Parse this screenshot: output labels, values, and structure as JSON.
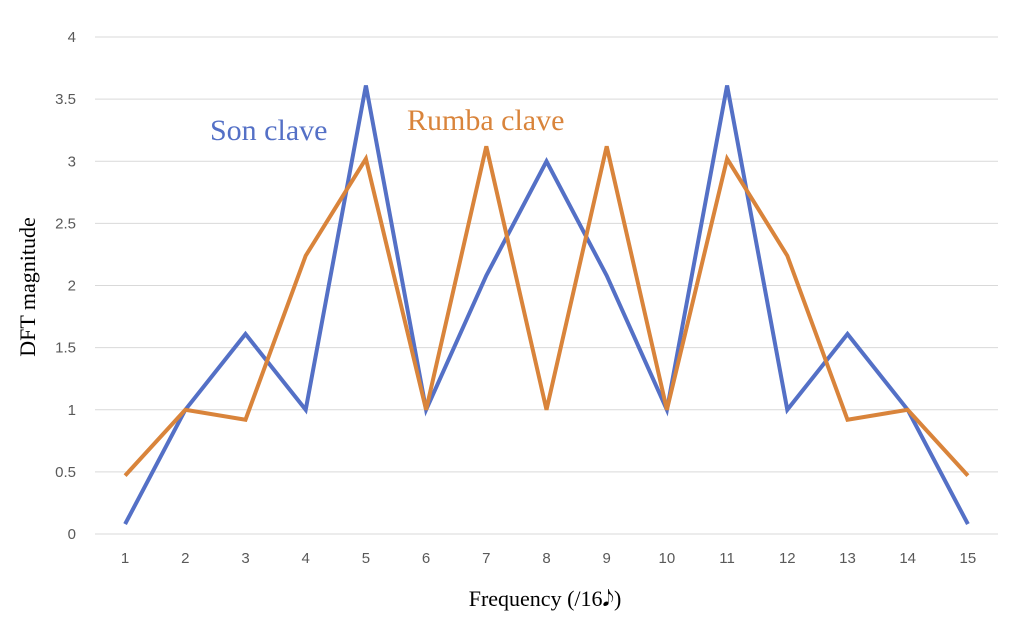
{
  "chart_data": {
    "type": "line",
    "xlabel": "Frequency (/16𝅘𝅥𝅮)",
    "ylabel": "DFT magnitude",
    "categories": [
      "1",
      "2",
      "3",
      "4",
      "5",
      "6",
      "7",
      "8",
      "9",
      "10",
      "11",
      "12",
      "13",
      "14",
      "15"
    ],
    "ylim": [
      0,
      4
    ],
    "yticks": [
      "0",
      "0.5",
      "1",
      "1.5",
      "2",
      "2.5",
      "3",
      "3.5",
      "4"
    ],
    "grid": true,
    "series": [
      {
        "name": "Son clave",
        "color": "#5470c6",
        "values": [
          0.08,
          1.0,
          1.61,
          1.0,
          3.61,
          1.0,
          2.08,
          3.0,
          2.08,
          1.0,
          3.61,
          1.0,
          1.61,
          1.0,
          0.08
        ]
      },
      {
        "name": "Rumba clave",
        "color": "#d9843b",
        "values": [
          0.47,
          1.0,
          0.92,
          2.24,
          3.02,
          1.0,
          3.12,
          1.0,
          3.12,
          1.0,
          3.02,
          2.24,
          0.92,
          1.0,
          0.47
        ]
      }
    ]
  }
}
